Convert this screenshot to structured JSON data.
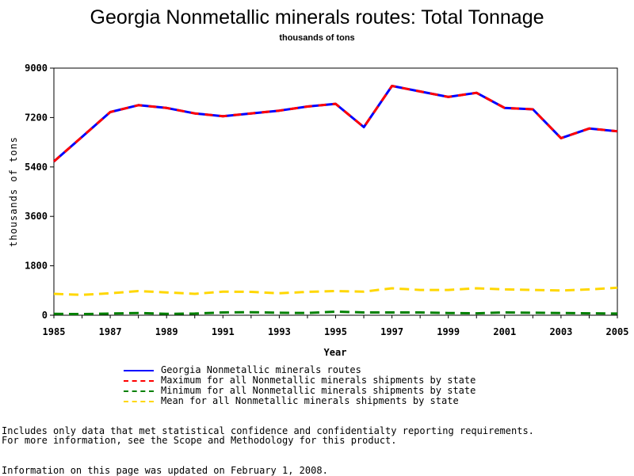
{
  "chart_data": {
    "type": "line",
    "title": "Georgia Nonmetallic minerals routes: Total Tonnage",
    "subtitle": "thousands of tons",
    "xlabel": "Year",
    "ylabel": "thousands of tons",
    "x": [
      1985,
      1986,
      1987,
      1988,
      1989,
      1990,
      1991,
      1992,
      1993,
      1994,
      1995,
      1996,
      1997,
      1998,
      1999,
      2000,
      2001,
      2002,
      2003,
      2004,
      2005
    ],
    "xticks": [
      "1985",
      "1987",
      "1989",
      "1991",
      "1993",
      "1995",
      "1997",
      "1999",
      "2001",
      "2003",
      "2005"
    ],
    "yticks": [
      "0",
      "1800",
      "3600",
      "5400",
      "7200",
      "9000"
    ],
    "xlim": [
      1985,
      2005
    ],
    "ylim": [
      0,
      9000
    ],
    "grid": false,
    "legend_position": "bottom",
    "series": [
      {
        "name": "Georgia Nonmetallic minerals routes",
        "color": "#0000ff",
        "style": "solid",
        "values": [
          5600,
          6500,
          7400,
          7650,
          7550,
          7350,
          7250,
          7350,
          7450,
          7600,
          7700,
          6850,
          8350,
          8150,
          7950,
          8100,
          7550,
          7500,
          6450,
          6800,
          6700
        ]
      },
      {
        "name": "Maximum for all Nonmetallic minerals shipments by state",
        "color": "#ff0000",
        "style": "dashed",
        "values": [
          5600,
          6500,
          7400,
          7650,
          7550,
          7350,
          7250,
          7350,
          7450,
          7600,
          7700,
          6850,
          8350,
          8150,
          7950,
          8100,
          7550,
          7500,
          6450,
          6800,
          6700
        ]
      },
      {
        "name": "Minimum for all Nonmetallic minerals shipments by state",
        "color": "#008000",
        "style": "dashed",
        "values": [
          50,
          40,
          60,
          80,
          50,
          60,
          100,
          110,
          90,
          80,
          130,
          100,
          100,
          100,
          80,
          70,
          100,
          90,
          80,
          70,
          60
        ]
      },
      {
        "name": "Mean for all Nonmetallic minerals shipments by state",
        "color": "#ffd700",
        "style": "dashed",
        "values": [
          780,
          740,
          800,
          880,
          830,
          780,
          860,
          850,
          800,
          850,
          880,
          860,
          980,
          920,
          920,
          980,
          940,
          920,
          900,
          940,
          1000
        ]
      }
    ]
  },
  "footnotes": {
    "line1": "Includes only data that met statistical confidence and confidentialty reporting requirements.",
    "line2": "For more information, see the Scope and Methodology for this product.",
    "line3": "Information on this page was updated on February 1, 2008."
  }
}
